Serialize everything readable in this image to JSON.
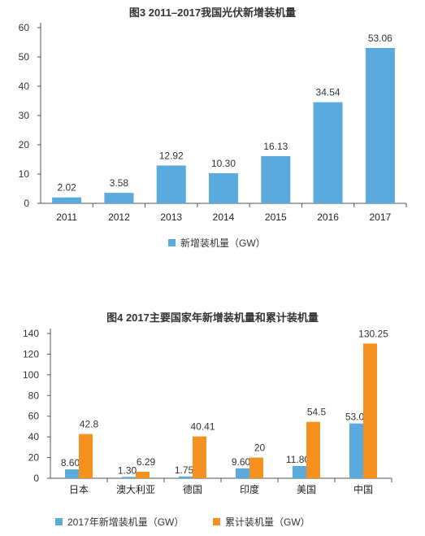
{
  "chart_data": [
    {
      "type": "bar",
      "title": "图3 2011–2017我国光伏新增装机量",
      "categories": [
        "2011",
        "2012",
        "2013",
        "2014",
        "2015",
        "2016",
        "2017"
      ],
      "series": [
        {
          "name": "新增装机量（GW）",
          "values": [
            2.02,
            3.58,
            12.92,
            10.3,
            16.13,
            34.54,
            53.06
          ],
          "labels": [
            "2.02",
            "3.58",
            "12.92",
            "10.30",
            "16.13",
            "34.54",
            "53.06"
          ],
          "color": "#5aaade"
        }
      ],
      "yticks": [
        "0",
        "10",
        "20",
        "30",
        "40",
        "50",
        "60"
      ],
      "ylim": [
        0,
        60
      ],
      "legend_position": "bottom"
    },
    {
      "type": "bar",
      "title": "图4 2017主要国家年新增装机量和累计装机量",
      "categories": [
        "日本",
        "澳大利亚",
        "德国",
        "印度",
        "美国",
        "中国"
      ],
      "series": [
        {
          "name": "2017年新增装机量（GW）",
          "values": [
            8.6,
            1.3,
            1.75,
            9.6,
            11.8,
            53.0
          ],
          "labels": [
            "8.60",
            "1.30",
            "1.75",
            "9.60",
            "11.80",
            "53.0"
          ],
          "color": "#5aaade"
        },
        {
          "name": "累计装机量（GW）",
          "values": [
            42.8,
            6.29,
            40.41,
            20,
            54.5,
            130.25
          ],
          "labels": [
            "42.8",
            "6.29",
            "40.41",
            "20",
            "54.5",
            "130.25"
          ],
          "color": "#f5921f"
        }
      ],
      "yticks": [
        "0",
        "20",
        "40",
        "60",
        "80",
        "100",
        "120",
        "140"
      ],
      "ylim": [
        0,
        140
      ],
      "legend_position": "bottom"
    }
  ]
}
